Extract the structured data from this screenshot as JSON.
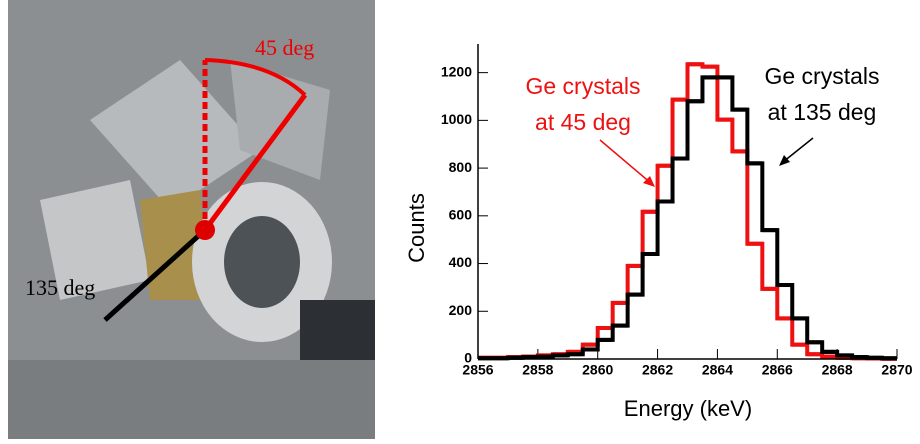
{
  "photo": {
    "labels": [
      "45 deg",
      "135 deg"
    ]
  },
  "chart_data": {
    "type": "histogram",
    "y_label": "Counts",
    "x_label": "Energy (keV)",
    "bins": [
      2856,
      2856.5,
      2857,
      2857.5,
      2858,
      2858.5,
      2859,
      2859.5,
      2860,
      2860.5,
      2861,
      2861.5,
      2862,
      2862.5,
      2863,
      2863.5,
      2864,
      2864.5,
      2865,
      2865.5,
      2866,
      2866.5,
      2867,
      2867.5,
      2868,
      2868.5,
      2869,
      2869.5,
      2870
    ],
    "series": [
      {
        "label_lines": [
          "Ge crystals",
          "at 45 deg"
        ],
        "color": "#ee1111",
        "values": [
          5,
          5,
          8,
          10,
          15,
          20,
          30,
          60,
          130,
          235,
          390,
          617,
          810,
          1087,
          1235,
          1225,
          1003,
          870,
          483,
          294,
          170,
          60,
          20,
          10,
          5,
          3,
          2,
          1
        ]
      },
      {
        "label_lines": [
          "Ge crystals",
          "at 135 deg"
        ],
        "color": "#000000",
        "values": [
          3,
          3,
          5,
          8,
          10,
          15,
          20,
          40,
          80,
          140,
          270,
          440,
          660,
          840,
          1080,
          1180,
          1180,
          1045,
          820,
          540,
          310,
          170,
          70,
          30,
          15,
          8,
          5,
          3
        ]
      }
    ],
    "xlim": [
      2856,
      2870
    ],
    "xticks": [
      2856,
      2858,
      2860,
      2862,
      2864,
      2866,
      2868,
      2870
    ],
    "ylim": [
      0,
      1320
    ],
    "yticks": [
      0,
      200,
      400,
      600,
      800,
      1000,
      1200
    ]
  }
}
